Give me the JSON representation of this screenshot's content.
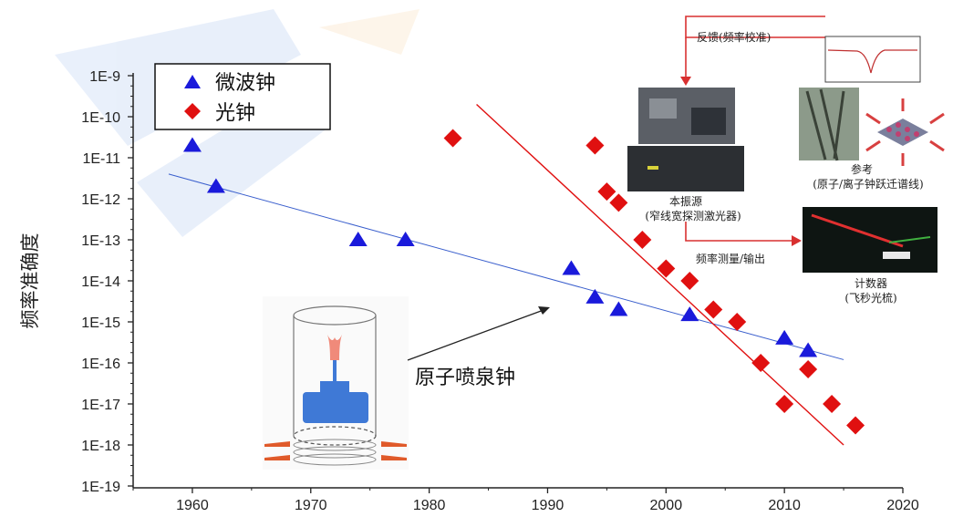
{
  "chart_data": {
    "type": "scatter",
    "ylabel": "频率准确度",
    "xlabel": "",
    "xlim": [
      1955,
      2020
    ],
    "xticks": [
      1960,
      1970,
      1980,
      1990,
      2000,
      2010,
      2020
    ],
    "ylim_exp": [
      -19,
      -9
    ],
    "ytick_labels": [
      "1E-9",
      "1E-10",
      "1E-11",
      "1E-12",
      "1E-13",
      "1E-14",
      "1E-15",
      "1E-16",
      "1E-17",
      "1E-18",
      "1E-19"
    ],
    "y_scale": "log",
    "legend_position": "top-left",
    "series": [
      {
        "name": "微波钟",
        "marker": "triangle",
        "color": "#1a1adb",
        "points": [
          [
            1960,
            2e-11
          ],
          [
            1962,
            2e-12
          ],
          [
            1974,
            1e-13
          ],
          [
            1978,
            1e-13
          ],
          [
            1992,
            2e-14
          ],
          [
            1994,
            4e-15
          ],
          [
            1996,
            2e-15
          ],
          [
            2002,
            1.5e-15
          ],
          [
            2010,
            4e-16
          ],
          [
            2012,
            2e-16
          ]
        ],
        "trend": [
          [
            1958,
            4e-12
          ],
          [
            2015,
            1.2e-16
          ]
        ]
      },
      {
        "name": "光钟",
        "marker": "diamond",
        "color": "#e01010",
        "points": [
          [
            1982,
            3e-11
          ],
          [
            1994,
            2e-11
          ],
          [
            1995,
            1.5e-12
          ],
          [
            1996,
            8e-13
          ],
          [
            1998,
            1e-13
          ],
          [
            2000,
            2e-14
          ],
          [
            2002,
            1e-14
          ],
          [
            2004,
            2e-15
          ],
          [
            2006,
            1e-15
          ],
          [
            2008,
            1e-16
          ],
          [
            2010,
            1e-17
          ],
          [
            2012,
            7e-17
          ],
          [
            2014,
            1e-17
          ],
          [
            2016,
            3e-18
          ]
        ],
        "trend": [
          [
            1984,
            2e-10
          ],
          [
            2015,
            1e-18
          ]
        ]
      }
    ],
    "annotations": {
      "fountain": "原子喷泉钟",
      "feedback": "反馈(频率校准)",
      "oscillator": "本振源",
      "oscillator_sub": "(窄线宽探测激光器)",
      "reference": "参考",
      "reference_sub": "(原子/离子钟跃迁谱线)",
      "measure": "频率测量/输出",
      "counter": "计数器",
      "counter_sub": "(飞秒光梳)"
    },
    "colors": {
      "axis": "#222222",
      "trend_blue": "#3a5fcd",
      "trend_red": "#e01010",
      "arrow_red": "#d83030"
    }
  }
}
